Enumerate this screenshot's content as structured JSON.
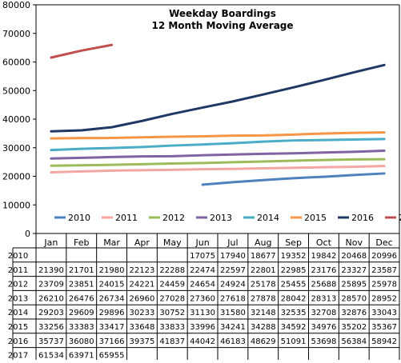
{
  "chart_data": {
    "type": "line",
    "title": "Weekday Boardings",
    "subtitle": "12 Month Moving Average",
    "categories": [
      "Jan",
      "Feb",
      "Mar",
      "Apr",
      "May",
      "Jun",
      "Jul",
      "Aug",
      "Sep",
      "Oct",
      "Nov",
      "Dec"
    ],
    "ylim": [
      0,
      80000
    ],
    "yticks": [
      0,
      10000,
      20000,
      30000,
      40000,
      50000,
      60000,
      70000,
      80000
    ],
    "grid": false,
    "legend": "bottom",
    "data_table": true,
    "series": [
      {
        "name": "2010",
        "color": "#4f81bd",
        "values": [
          null,
          null,
          null,
          null,
          null,
          17075,
          17940,
          18677,
          19352,
          19842,
          20468,
          20996
        ]
      },
      {
        "name": "2011",
        "color": "#f4a6a4",
        "values": [
          21390,
          21701,
          21980,
          22123,
          22288,
          22474,
          22597,
          22801,
          22985,
          23176,
          23327,
          23587
        ]
      },
      {
        "name": "2012",
        "color": "#9bbb59",
        "values": [
          23709,
          23851,
          24015,
          24221,
          24459,
          24654,
          24924,
          25178,
          25455,
          25688,
          25895,
          25978
        ]
      },
      {
        "name": "2013",
        "color": "#8064a2",
        "values": [
          26210,
          26476,
          26734,
          26960,
          27028,
          27360,
          27618,
          27878,
          28042,
          28313,
          28570,
          28952
        ]
      },
      {
        "name": "2014",
        "color": "#4bacc6",
        "values": [
          29203,
          29609,
          29896,
          30233,
          30752,
          31130,
          31580,
          32148,
          32535,
          32708,
          32876,
          33043
        ]
      },
      {
        "name": "2015",
        "color": "#f79646",
        "values": [
          33256,
          33383,
          33417,
          33648,
          33833,
          33996,
          34241,
          34288,
          34592,
          34976,
          35202,
          35367
        ]
      },
      {
        "name": "2016",
        "color": "#1f3864",
        "values": [
          35737,
          36080,
          37166,
          39375,
          41837,
          44042,
          46183,
          48629,
          51091,
          53698,
          56384,
          58942
        ]
      },
      {
        "name": "2017",
        "color": "#c0504d",
        "values": [
          61534,
          63971,
          65955,
          null,
          null,
          null,
          null,
          null,
          null,
          null,
          null,
          null
        ]
      }
    ]
  }
}
